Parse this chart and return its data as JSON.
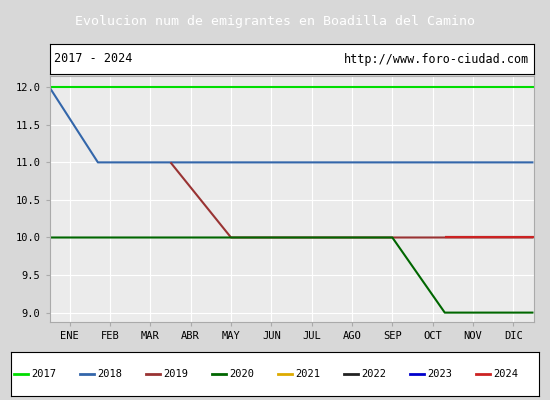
{
  "title": "Evolucion num de emigrantes en Boadilla del Camino",
  "subtitle_left": "2017 - 2024",
  "subtitle_right": "http://www.foro-ciudad.com",
  "ylim": [
    8.875,
    12.15
  ],
  "yticks": [
    9.0,
    9.5,
    10.0,
    10.5,
    11.0,
    11.5,
    12.0
  ],
  "x_labels": [
    "ENE",
    "FEB",
    "MAR",
    "ABR",
    "MAY",
    "JUN",
    "JUL",
    "AGO",
    "SEP",
    "OCT",
    "NOV",
    "DIC"
  ],
  "background_color": "#d8d8d8",
  "plot_bg_color": "#ebebeb",
  "title_bg_color": "#4472c4",
  "title_text_color": "#ffffff",
  "grid_color": "#ffffff",
  "series": [
    {
      "label": "2017",
      "color": "#00dd00",
      "linewidth": 1.5,
      "x": [
        0,
        12
      ],
      "y": [
        12.0,
        12.0
      ]
    },
    {
      "label": "2018",
      "color": "#3366aa",
      "linewidth": 1.5,
      "x": [
        0,
        1.2,
        12
      ],
      "y": [
        12.0,
        11.0,
        11.0
      ]
    },
    {
      "label": "2019",
      "color": "#993333",
      "linewidth": 1.5,
      "x": [
        3.0,
        3.0,
        4.5,
        12
      ],
      "y": [
        11.0,
        11.0,
        10.0,
        10.0
      ]
    },
    {
      "label": "2020",
      "color": "#006600",
      "linewidth": 1.5,
      "x": [
        0,
        8.5,
        9.8,
        12
      ],
      "y": [
        10.0,
        10.0,
        9.0,
        9.0
      ]
    },
    {
      "label": "2021",
      "color": "#ddaa00",
      "linewidth": 1.5,
      "x": [],
      "y": []
    },
    {
      "label": "2022",
      "color": "#222222",
      "linewidth": 1.5,
      "x": [
        9.8,
        12
      ],
      "y": [
        10.0,
        10.0
      ]
    },
    {
      "label": "2023",
      "color": "#0000cc",
      "linewidth": 1.5,
      "x": [],
      "y": []
    },
    {
      "label": "2024",
      "color": "#cc2222",
      "linewidth": 1.5,
      "x": [
        9.8,
        12
      ],
      "y": [
        10.0,
        10.0
      ]
    }
  ]
}
